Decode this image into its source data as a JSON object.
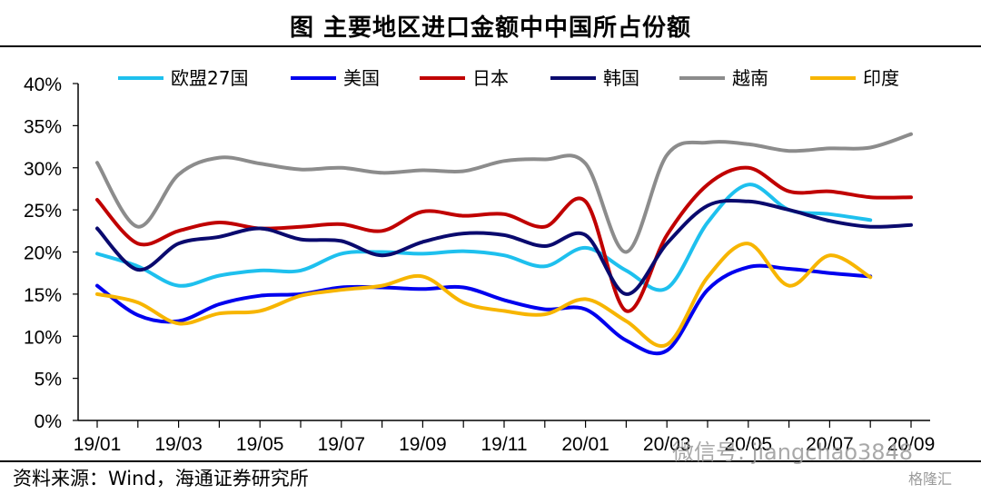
{
  "header": {
    "title": "图  主要地区进口金额中中国所占份额"
  },
  "footer": {
    "source": "资料来源：Wind，海通证券研究所"
  },
  "watermark": {
    "text": "微信号: jiangchao3848",
    "brand": "格隆汇"
  },
  "chart_data": {
    "type": "line",
    "title": "图  主要地区进口金额中中国所占份额",
    "xlabel": "",
    "ylabel": "",
    "ylim": [
      0,
      40
    ],
    "y_ticks": [
      "0%",
      "5%",
      "10%",
      "15%",
      "20%",
      "25%",
      "30%",
      "35%",
      "40%"
    ],
    "x_ticks": [
      "19/01",
      "19/03",
      "19/05",
      "19/07",
      "19/09",
      "19/11",
      "20/01",
      "20/03",
      "20/05",
      "20/07",
      "20/09"
    ],
    "categories": [
      "19/01",
      "19/02",
      "19/03",
      "19/04",
      "19/05",
      "19/06",
      "19/07",
      "19/08",
      "19/09",
      "19/10",
      "19/11",
      "19/12",
      "20/01",
      "20/02",
      "20/03",
      "20/04",
      "20/05",
      "20/06",
      "20/07",
      "20/08",
      "20/09"
    ],
    "legend_position": "top",
    "grid": false,
    "series": [
      {
        "name": "欧盟27国",
        "color": "#1ec0ee",
        "values": [
          19.8,
          18.3,
          16.0,
          17.2,
          17.8,
          17.8,
          19.8,
          20.0,
          19.8,
          20.1,
          19.6,
          18.3,
          20.5,
          17.8,
          15.7,
          23.5,
          28.0,
          25.0,
          24.5,
          23.8,
          null
        ]
      },
      {
        "name": "美国",
        "color": "#0000ee",
        "values": [
          16.0,
          12.5,
          11.8,
          13.8,
          14.8,
          15.0,
          15.8,
          15.8,
          15.6,
          15.8,
          14.3,
          13.2,
          13.2,
          9.5,
          8.3,
          15.5,
          18.2,
          18.0,
          17.5,
          17.1,
          null
        ]
      },
      {
        "name": "日本",
        "color": "#c00000",
        "values": [
          26.2,
          21.0,
          22.5,
          23.5,
          22.8,
          23.0,
          23.3,
          22.5,
          24.8,
          24.3,
          24.5,
          23.0,
          26.0,
          13.0,
          22.0,
          28.0,
          30.0,
          27.2,
          27.2,
          26.5,
          26.5
        ]
      },
      {
        "name": "韩国",
        "color": "#0a0a6e",
        "values": [
          22.8,
          17.9,
          21.0,
          21.8,
          22.8,
          21.5,
          21.3,
          19.6,
          21.2,
          22.2,
          22.0,
          20.7,
          22.0,
          15.0,
          21.0,
          25.5,
          26.0,
          25.0,
          23.7,
          23.0,
          23.2
        ]
      },
      {
        "name": "越南",
        "color": "#8c8c8c",
        "values": [
          30.6,
          23.0,
          29.2,
          31.2,
          30.5,
          29.8,
          30.0,
          29.4,
          29.7,
          29.6,
          30.8,
          31.0,
          30.5,
          20.0,
          31.5,
          33.0,
          32.8,
          32.0,
          32.3,
          32.4,
          34.0
        ]
      },
      {
        "name": "印度",
        "color": "#f7b500",
        "values": [
          15.0,
          14.0,
          11.5,
          12.7,
          13.0,
          14.8,
          15.5,
          16.0,
          17.1,
          14.0,
          13.0,
          12.6,
          14.4,
          11.8,
          9.0,
          17.0,
          21.0,
          16.0,
          19.6,
          17.0,
          null
        ]
      }
    ]
  }
}
